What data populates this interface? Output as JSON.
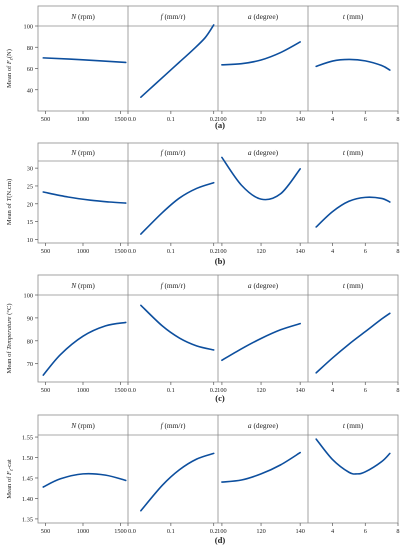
{
  "figure": {
    "line_color": "#0d4f9e",
    "panel_labels": [
      "(a)",
      "(b)",
      "(c)",
      "(d)"
    ]
  },
  "chart_data": [
    {
      "type": "line",
      "panel_label": "(a)",
      "ylabel_prefix": "Mean of ",
      "ylabel_var": "F",
      "ylabel_sub": "z",
      "ylabel_suffix": "(N)",
      "ylim": [
        20,
        100
      ],
      "yticks": [
        40,
        60,
        80,
        100
      ],
      "facets": [
        {
          "var": "N",
          "unit": " (rpm)",
          "xlim": [
            400,
            1600
          ],
          "xticks": [
            500,
            1000,
            1500
          ],
          "xtick_labels": [
            "500",
            "1000",
            "1500"
          ],
          "x": [
            470,
            1000,
            1570
          ],
          "y": [
            70,
            68.2,
            65.7
          ]
        },
        {
          "var": "f",
          "unit": " (mm/r)",
          "xlim": [
            0,
            0.21
          ],
          "xticks": [
            0,
            0.1,
            0.2
          ],
          "xtick_labels": [
            "0.0",
            "0.1",
            "0.2"
          ],
          "x": [
            0.03,
            0.06,
            0.09,
            0.12,
            0.15,
            0.18,
            0.2
          ],
          "y": [
            33,
            44,
            55,
            66,
            77,
            89,
            101
          ]
        },
        {
          "var": "a",
          "unit": " (degree)",
          "xlim": [
            98,
            144
          ],
          "xticks": [
            100,
            120,
            140
          ],
          "xtick_labels": [
            "100",
            "120",
            "140"
          ],
          "x": [
            100,
            110,
            120,
            130,
            140
          ],
          "y": [
            63.5,
            64.5,
            68,
            75,
            85
          ]
        },
        {
          "var": "t",
          "unit": " (mm)",
          "xlim": [
            2.5,
            8
          ],
          "xticks": [
            4,
            6,
            8
          ],
          "xtick_labels": [
            "4",
            "6",
            "8"
          ],
          "x": [
            3,
            4,
            5,
            6,
            7,
            7.5
          ],
          "y": [
            62,
            67,
            68.5,
            67.2,
            62.8,
            58.5
          ]
        }
      ]
    },
    {
      "type": "line",
      "panel_label": "(b)",
      "ylabel_prefix": "Mean of ",
      "ylabel_var": "T",
      "ylabel_sub": "",
      "ylabel_suffix": "(N.cm)",
      "ylim": [
        9,
        32
      ],
      "yticks": [
        10,
        15,
        20,
        25,
        30
      ],
      "facets": [
        {
          "var": "N",
          "unit": " (rpm)",
          "xlim": [
            400,
            1600
          ],
          "xticks": [
            500,
            1000,
            1500
          ],
          "xtick_labels": [
            "500",
            "1000",
            "1500"
          ],
          "x": [
            470,
            800,
            1100,
            1350,
            1570
          ],
          "y": [
            23.3,
            21.9,
            21,
            20.5,
            20.2
          ]
        },
        {
          "var": "f",
          "unit": " (mm/r)",
          "xlim": [
            0,
            0.21
          ],
          "xticks": [
            0,
            0.1,
            0.2
          ],
          "xtick_labels": [
            "0.0",
            "0.1",
            "0.2"
          ],
          "x": [
            0.03,
            0.08,
            0.12,
            0.16,
            0.2
          ],
          "y": [
            11.5,
            17.5,
            21.6,
            24.3,
            25.9
          ]
        },
        {
          "var": "a",
          "unit": " (degree)",
          "xlim": [
            98,
            144
          ],
          "xticks": [
            100,
            120,
            140
          ],
          "xtick_labels": [
            "100",
            "120",
            "140"
          ],
          "x": [
            100,
            110,
            120,
            130,
            140
          ],
          "y": [
            33,
            25.2,
            21.3,
            22.8,
            29.8
          ]
        },
        {
          "var": "t",
          "unit": " (mm)",
          "xlim": [
            2.5,
            8
          ],
          "xticks": [
            4,
            6,
            8
          ],
          "xtick_labels": [
            "4",
            "6",
            "8"
          ],
          "x": [
            3,
            4,
            5,
            6,
            7,
            7.5
          ],
          "y": [
            13.5,
            17.8,
            20.7,
            21.8,
            21.5,
            20.5
          ]
        }
      ]
    },
    {
      "type": "line",
      "panel_label": "(c)",
      "ylabel_prefix": "Mean of ",
      "ylabel_var": "Temperature",
      "ylabel_sub": "",
      "ylabel_suffix": " (°C)",
      "ylim": [
        62,
        100
      ],
      "yticks": [
        70,
        80,
        90,
        100
      ],
      "facets": [
        {
          "var": "N",
          "unit": " (rpm)",
          "xlim": [
            400,
            1600
          ],
          "xticks": [
            500,
            1000,
            1500
          ],
          "xtick_labels": [
            "500",
            "1000",
            "1500"
          ],
          "x": [
            470,
            700,
            1000,
            1300,
            1570
          ],
          "y": [
            65,
            74,
            82,
            86.5,
            88
          ]
        },
        {
          "var": "f",
          "unit": " (mm/r)",
          "xlim": [
            0,
            0.21
          ],
          "xticks": [
            0,
            0.1,
            0.2
          ],
          "xtick_labels": [
            "0.0",
            "0.1",
            "0.2"
          ],
          "x": [
            0.03,
            0.08,
            0.12,
            0.16,
            0.2
          ],
          "y": [
            95.5,
            86.5,
            81.2,
            77.8,
            76
          ]
        },
        {
          "var": "a",
          "unit": " (degree)",
          "xlim": [
            98,
            144
          ],
          "xticks": [
            100,
            120,
            140
          ],
          "xtick_labels": [
            "100",
            "120",
            "140"
          ],
          "x": [
            100,
            110,
            120,
            130,
            140
          ],
          "y": [
            71.5,
            76.5,
            81,
            84.8,
            87.5
          ]
        },
        {
          "var": "t",
          "unit": " (mm)",
          "xlim": [
            2.5,
            8
          ],
          "xticks": [
            4,
            6,
            8
          ],
          "xtick_labels": [
            "4",
            "6",
            "8"
          ],
          "x": [
            3,
            4,
            5,
            6,
            7,
            7.5
          ],
          "y": [
            66,
            72.5,
            78.5,
            84,
            89.5,
            92
          ]
        }
      ]
    },
    {
      "type": "line",
      "panel_label": "(d)",
      "ylabel_prefix": "Mean of ",
      "ylabel_var": "F",
      "ylabel_sub": "z",
      "ylabel_suffix": "-cat",
      "ylim": [
        1.34,
        1.555
      ],
      "yticks": [
        1.35,
        1.4,
        1.45,
        1.5,
        1.55
      ],
      "ytick_labels": [
        "1.35",
        "1.40",
        "1.45",
        "1.50",
        "1.55"
      ],
      "facets": [
        {
          "var": "N",
          "unit": " (rpm)",
          "xlim": [
            400,
            1600
          ],
          "xticks": [
            500,
            1000,
            1500
          ],
          "xtick_labels": [
            "500",
            "1000",
            "1500"
          ],
          "x": [
            470,
            700,
            1000,
            1300,
            1570
          ],
          "y": [
            1.428,
            1.448,
            1.46,
            1.457,
            1.444
          ]
        },
        {
          "var": "f",
          "unit": " (mm/r)",
          "xlim": [
            0,
            0.21
          ],
          "xticks": [
            0,
            0.1,
            0.2
          ],
          "xtick_labels": [
            "0.0",
            "0.1",
            "0.2"
          ],
          "x": [
            0.03,
            0.08,
            0.12,
            0.16,
            0.2
          ],
          "y": [
            1.37,
            1.432,
            1.47,
            1.496,
            1.51
          ]
        },
        {
          "var": "a",
          "unit": " (degree)",
          "xlim": [
            98,
            144
          ],
          "xticks": [
            100,
            120,
            140
          ],
          "xtick_labels": [
            "100",
            "120",
            "140"
          ],
          "x": [
            100,
            110,
            120,
            130,
            140
          ],
          "y": [
            1.44,
            1.445,
            1.46,
            1.482,
            1.512
          ]
        },
        {
          "var": "t",
          "unit": " (mm)",
          "xlim": [
            2.5,
            8
          ],
          "xticks": [
            4,
            6,
            8
          ],
          "xtick_labels": [
            "4",
            "6",
            "8"
          ],
          "x": [
            3,
            4,
            5,
            5.5,
            6,
            7,
            7.5
          ],
          "y": [
            1.545,
            1.495,
            1.464,
            1.46,
            1.465,
            1.49,
            1.51
          ]
        }
      ]
    }
  ]
}
